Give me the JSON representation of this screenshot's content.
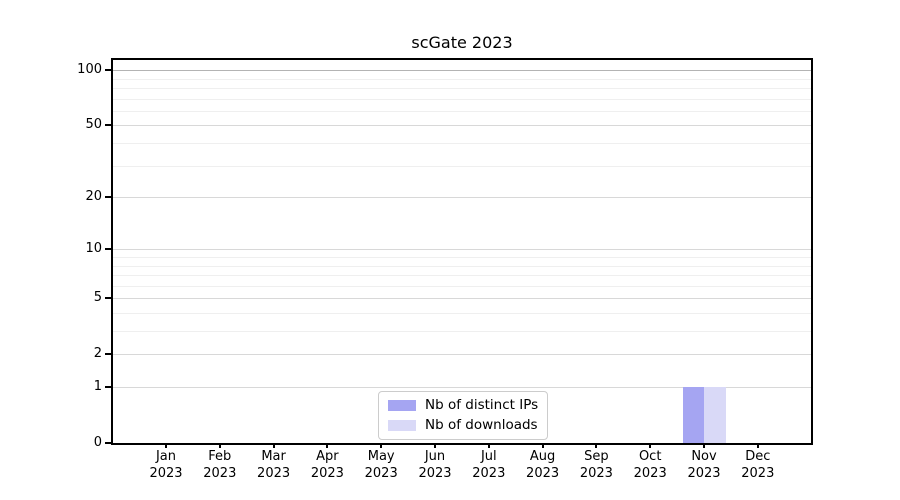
{
  "chart_data": {
    "type": "bar",
    "title": "scGate 2023",
    "categories": [
      "Jan",
      "Feb",
      "Mar",
      "Apr",
      "May",
      "Jun",
      "Jul",
      "Aug",
      "Sep",
      "Oct",
      "Nov",
      "Dec"
    ],
    "x_year": "2023",
    "series": [
      {
        "name": "Nb of distinct IPs",
        "color": "#a5a5f2",
        "values": [
          0,
          0,
          0,
          0,
          0,
          0,
          0,
          0,
          0,
          0,
          1,
          0
        ]
      },
      {
        "name": "Nb of downloads",
        "color": "#d9d9f7",
        "values": [
          0,
          0,
          0,
          0,
          0,
          0,
          0,
          0,
          0,
          0,
          1,
          0
        ]
      }
    ],
    "y_scale": "log10(1+y)",
    "ylim": [
      0,
      113.6
    ],
    "y_major_ticks": [
      0,
      1,
      2,
      5,
      10,
      20,
      50,
      100
    ],
    "y_minor_ticks": [
      3,
      4,
      6,
      7,
      8,
      9,
      30,
      40,
      60,
      70,
      80,
      90
    ],
    "grid": "on",
    "legend_position": "lower center",
    "colors": {
      "grid_major": "#d8d8d8",
      "grid_minor": "#efefef",
      "grid_emph": "#b3b3b3",
      "axis": "#000000",
      "background": "#ffffff"
    }
  }
}
